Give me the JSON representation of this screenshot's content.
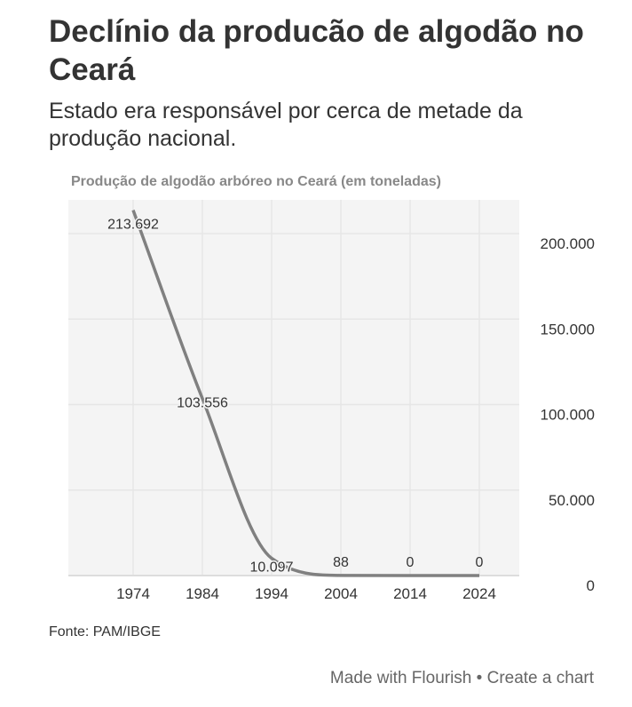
{
  "header": {
    "title": "Declínio da producão de algodão no Ceará",
    "subtitle": "Estado era responsável por cerca de metade da produção nacional."
  },
  "chart_data": {
    "type": "line",
    "title": "Produção de algodão arbóreo no Ceará (em toneladas)",
    "x": [
      1974,
      1984,
      1994,
      2004,
      2014,
      2024
    ],
    "series": [
      {
        "values": [
          213692,
          103556,
          10097,
          88,
          0,
          0
        ],
        "labels": [
          "213.692",
          "103.556",
          "10.097",
          "88",
          "0",
          "0"
        ],
        "color": "#808080"
      }
    ],
    "x_ticks": [
      "1974",
      "1984",
      "1994",
      "2004",
      "2014",
      "2024"
    ],
    "y_ticks": [
      {
        "value": 0,
        "label": "0"
      },
      {
        "value": 50000,
        "label": "50.000"
      },
      {
        "value": 100000,
        "label": "100.000"
      },
      {
        "value": 150000,
        "label": "150.000"
      },
      {
        "value": 200000,
        "label": "200.000"
      }
    ],
    "ylim": [
      0,
      220000
    ],
    "xlim": [
      1964.7,
      2030
    ],
    "grid": true,
    "y_axis_position": "right",
    "plot_background": "#f4f4f4"
  },
  "footer": {
    "source": "Fonte: PAM/IBGE",
    "made_with": "Made with Flourish",
    "separator": " • ",
    "create": "Create a chart"
  }
}
